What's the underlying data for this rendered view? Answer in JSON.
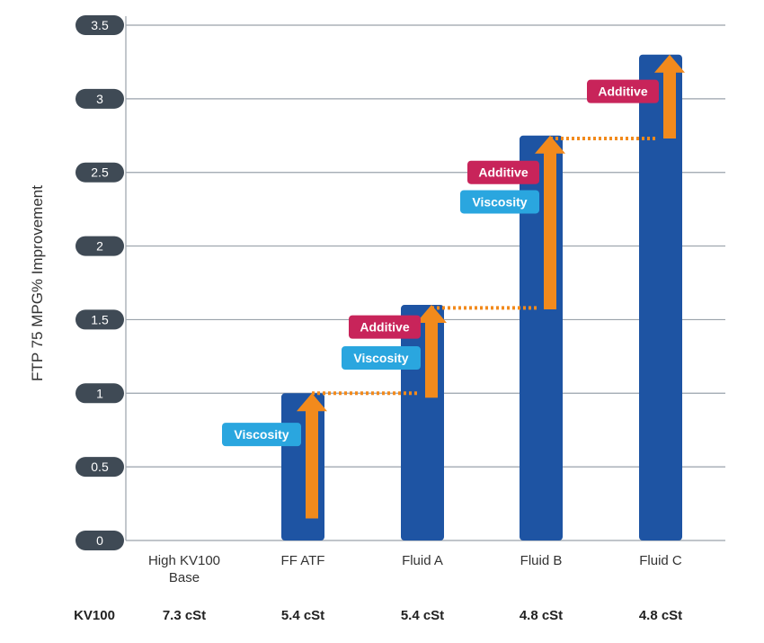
{
  "chart_data": {
    "type": "bar",
    "ylabel": "FTP 75 MPG% Improvement",
    "ylim": [
      0,
      3.5
    ],
    "yticks": [
      "0",
      "0.5",
      "1",
      "1.5",
      "2",
      "2.5",
      "3",
      "3.5"
    ],
    "grid": true,
    "categories": [
      {
        "lines": [
          "High KV100",
          "Base"
        ]
      },
      {
        "lines": [
          "FF ATF"
        ]
      },
      {
        "lines": [
          "Fluid A"
        ]
      },
      {
        "lines": [
          "Fluid B"
        ]
      },
      {
        "lines": [
          "Fluid C"
        ]
      }
    ],
    "values": [
      0,
      1.0,
      1.6,
      2.75,
      3.3
    ],
    "kv_row_label": "KV100",
    "kv_values": [
      "7.3 cSt",
      "5.4 cSt",
      "5.4 cSt",
      "4.8 cSt",
      "4.8 cSt"
    ],
    "arrows": [
      {
        "category": 1,
        "from": 0.15,
        "to": 1.0
      },
      {
        "category": 2,
        "from": 0.97,
        "to": 1.6
      },
      {
        "category": 3,
        "from": 1.57,
        "to": 2.75
      },
      {
        "category": 4,
        "from": 2.73,
        "to": 3.3
      }
    ],
    "dotted_links": [
      {
        "from_category": 1,
        "to_category": 2,
        "value": 1.0
      },
      {
        "from_category": 2,
        "to_category": 3,
        "value": 1.58
      },
      {
        "from_category": 3,
        "to_category": 4,
        "value": 2.73
      }
    ],
    "tags": [
      {
        "category": 1,
        "text": "Viscosity",
        "kind": "viscosity",
        "value": 0.72
      },
      {
        "category": 2,
        "text": "Additive",
        "kind": "additive",
        "value": 1.45
      },
      {
        "category": 2,
        "text": "Viscosity",
        "kind": "viscosity",
        "value": 1.24
      },
      {
        "category": 3,
        "text": "Additive",
        "kind": "additive",
        "value": 2.5
      },
      {
        "category": 3,
        "text": "Viscosity",
        "kind": "viscosity",
        "value": 2.3
      },
      {
        "category": 4,
        "text": "Additive",
        "kind": "additive",
        "value": 3.05
      }
    ],
    "colors": {
      "bar": "#1e54a3",
      "arrow": "#f28a1c",
      "additive": "#c8245a",
      "viscosity": "#2aa6df",
      "tick_pill": "#3f4a55",
      "grid": "#9aa2ab"
    }
  }
}
